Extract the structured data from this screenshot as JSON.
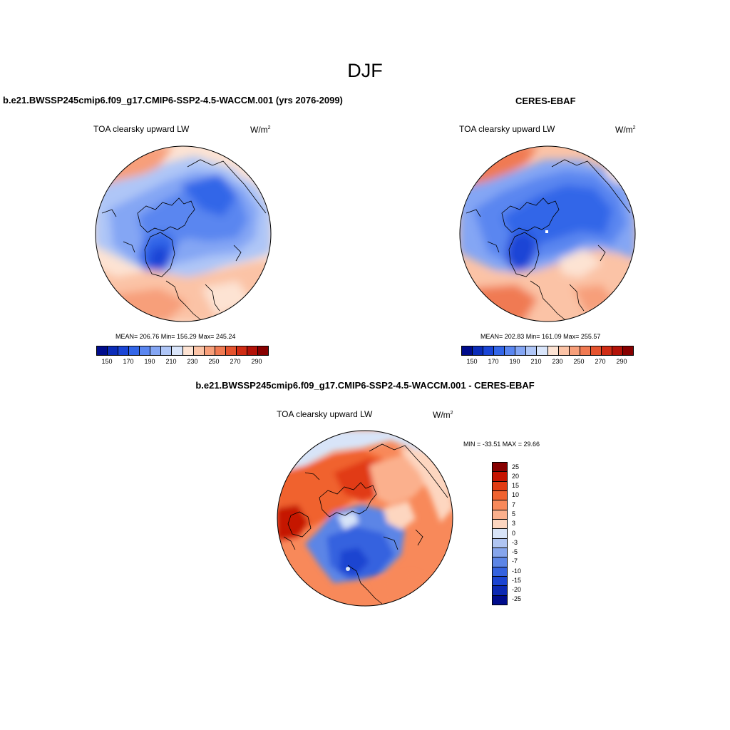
{
  "title": "DJF",
  "panels": [
    {
      "name": "b.e21.BWSSP245cmip6.f09_g17.CMIP6-SSP2-4.5-WACCM.001 (yrs 2076-2099)",
      "variable": "TOA clearsky upward LW",
      "units_base": "W/m",
      "units_exp": "2",
      "stats": "MEAN= 206.76  Min= 156.29  Max= 245.24"
    },
    {
      "name": "CERES-EBAF",
      "variable": "TOA clearsky upward LW",
      "units_base": "W/m",
      "units_exp": "2",
      "stats": "MEAN= 202.83  Min= 161.09  Max= 255.57"
    },
    {
      "name": "b.e21.BWSSP245cmip6.f09_g17.CMIP6-SSP2-4.5-WACCM.001 - CERES-EBAF",
      "variable": "TOA clearsky upward LW",
      "units_base": "W/m",
      "units_exp": "2",
      "stats": "MIN = -33.51 MAX =  29.66"
    }
  ],
  "colorbar_abs": {
    "colors": [
      "#000c8c",
      "#0b2cb8",
      "#1a45d6",
      "#3366e8",
      "#5a86f0",
      "#84a6f4",
      "#afc6f7",
      "#d9e5fa",
      "#fde3d3",
      "#fbc3a6",
      "#f79f7a",
      "#f07a52",
      "#e5532e",
      "#d02c14",
      "#b31208",
      "#870000"
    ],
    "tick_labels": [
      "150",
      "170",
      "190",
      "210",
      "230",
      "250",
      "270",
      "290"
    ]
  },
  "colorbar_diff": {
    "colors": [
      "#870000",
      "#c51300",
      "#e13b12",
      "#f0622f",
      "#f8895a",
      "#fbb08d",
      "#fdd6c0",
      "#d8e4f8",
      "#b0c5f2",
      "#86a5ec",
      "#5c85e6",
      "#3462df",
      "#1b44d1",
      "#0c29b3",
      "#000c8c"
    ],
    "labels": [
      "25",
      "20",
      "15",
      "10",
      "7",
      "5",
      "3",
      "0",
      "-3",
      "-5",
      "-7",
      "-10",
      "-15",
      "-20",
      "-25"
    ]
  },
  "chart_data": {
    "type": "heatmap",
    "title": "DJF",
    "projection": "north polar stereographic",
    "panels": [
      {
        "name": "b.e21.BWSSP245cmip6.f09_g17.CMIP6-SSP2-4.5-WACCM.001 (yrs 2076-2099)",
        "variable": "TOA clearsky upward LW",
        "units": "W/m^2",
        "mean": 206.76,
        "min": 156.29,
        "max": 245.24,
        "levels": [
          150,
          160,
          170,
          180,
          190,
          200,
          210,
          220,
          230,
          240,
          250,
          260,
          270,
          280,
          290
        ]
      },
      {
        "name": "CERES-EBAF",
        "variable": "TOA clearsky upward LW",
        "units": "W/m^2",
        "mean": 202.83,
        "min": 161.09,
        "max": 255.57,
        "levels": [
          150,
          160,
          170,
          180,
          190,
          200,
          210,
          220,
          230,
          240,
          250,
          260,
          270,
          280,
          290
        ]
      },
      {
        "name": "b.e21.BWSSP245cmip6.f09_g17.CMIP6-SSP2-4.5-WACCM.001 - CERES-EBAF",
        "variable": "TOA clearsky upward LW",
        "units": "W/m^2",
        "min": -33.51,
        "max": 29.66,
        "levels": [
          -25,
          -20,
          -15,
          -10,
          -7,
          -5,
          -3,
          0,
          3,
          5,
          7,
          10,
          15,
          20,
          25
        ]
      }
    ]
  }
}
